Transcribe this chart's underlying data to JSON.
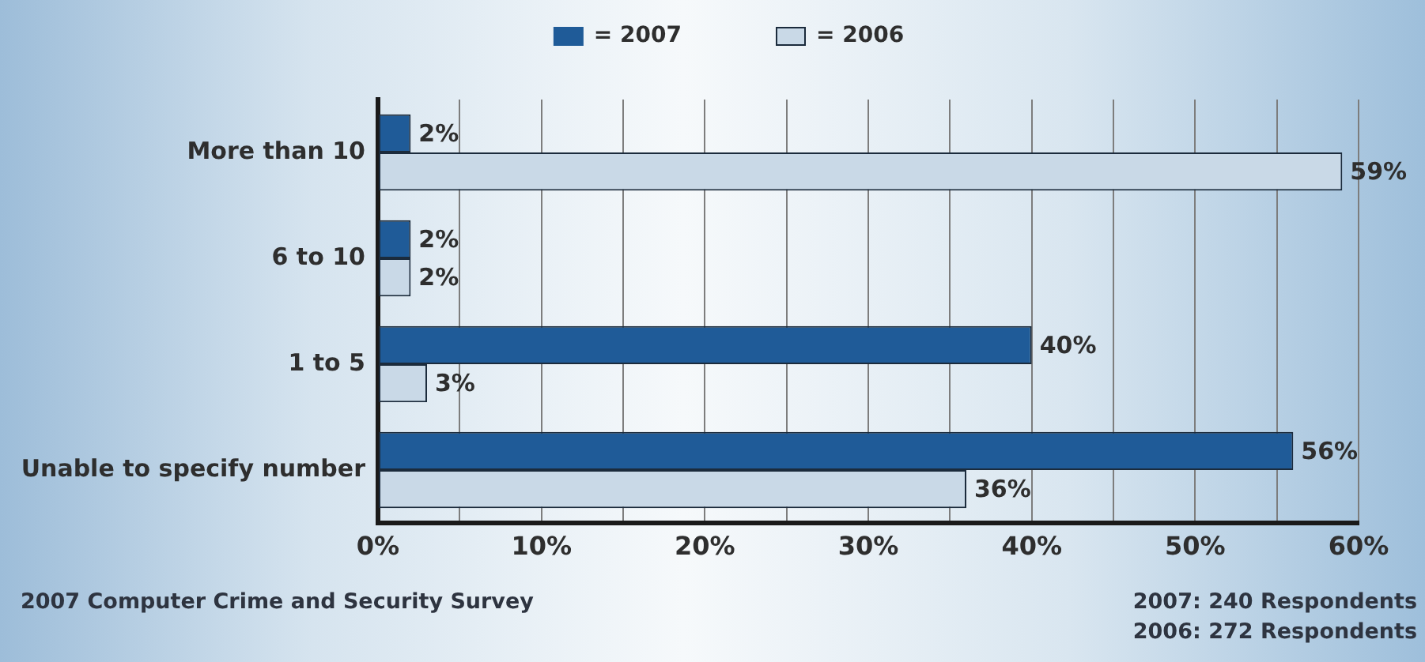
{
  "chart_data": {
    "type": "bar",
    "orientation": "horizontal",
    "categories": [
      "More than 10",
      "6 to 10",
      "1 to 5",
      "Unable to specify number"
    ],
    "series": [
      {
        "name": "= 2007",
        "color": "#1f5b98",
        "values": [
          2,
          2,
          40,
          56
        ],
        "value_labels": [
          "2%",
          "2%",
          "40%",
          "56%"
        ]
      },
      {
        "name": "= 2006",
        "color": "#c9d9e7",
        "values": [
          59,
          2,
          3,
          36
        ],
        "value_labels": [
          "59%",
          "2%",
          "3%",
          "36%"
        ]
      }
    ],
    "xlim": [
      0,
      60
    ],
    "xticks": [
      {
        "value": 0,
        "label": "0%"
      },
      {
        "value": 5,
        "label": null
      },
      {
        "value": 10,
        "label": "10%"
      },
      {
        "value": 15,
        "label": null
      },
      {
        "value": 20,
        "label": "20%"
      },
      {
        "value": 25,
        "label": null
      },
      {
        "value": 30,
        "label": "30%"
      },
      {
        "value": 35,
        "label": null
      },
      {
        "value": 40,
        "label": "40%"
      },
      {
        "value": 45,
        "label": null
      },
      {
        "value": 50,
        "label": "50%"
      },
      {
        "value": 55,
        "label": null
      },
      {
        "value": 60,
        "label": "60%"
      }
    ],
    "grid": "x",
    "legend": "top",
    "annotations": [
      "2007 Computer Crime and Security Survey",
      "2007: 240 Respondents",
      "2006: 272 Respondents"
    ]
  }
}
